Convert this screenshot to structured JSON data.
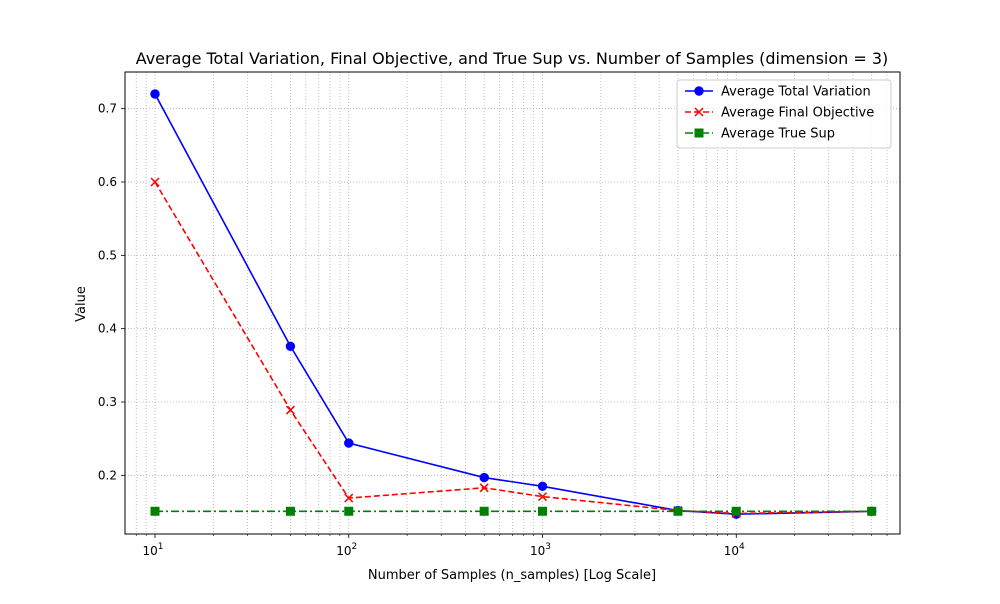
{
  "chart_data": {
    "type": "line",
    "title": "Average Total Variation, Final Objective, and True Sup vs. Number of Samples (dimension = 3)",
    "xlabel": "Number of Samples (n_samples) [Log Scale]",
    "ylabel": "Value",
    "x_scale": "log",
    "xlim": [
      7,
      70000
    ],
    "ylim": [
      0.12,
      0.75
    ],
    "x": [
      10,
      50,
      100,
      500,
      1000,
      5000,
      10000,
      50000
    ],
    "x_tick_values": [
      10,
      100,
      1000,
      10000
    ],
    "x_tick_labels": [
      {
        "base": "10",
        "exp": "1"
      },
      {
        "base": "10",
        "exp": "2"
      },
      {
        "base": "10",
        "exp": "3"
      },
      {
        "base": "10",
        "exp": "4"
      }
    ],
    "y_tick_values": [
      0.2,
      0.3,
      0.4,
      0.5,
      0.6,
      0.7
    ],
    "y_tick_labels": [
      "0.2",
      "0.3",
      "0.4",
      "0.5",
      "0.6",
      "0.7"
    ],
    "grid": "both",
    "legend_position": "top-right",
    "series": [
      {
        "name": "Average Total Variation",
        "values": [
          0.72,
          0.376,
          0.244,
          0.197,
          0.185,
          0.152,
          0.147,
          0.151
        ],
        "color": "#0000ff",
        "line_style": "solid",
        "marker": "circle"
      },
      {
        "name": "Average Final Objective",
        "values": [
          0.6,
          0.289,
          0.169,
          0.183,
          0.171,
          0.152,
          0.148,
          0.151
        ],
        "color": "#ff0000",
        "line_style": "dashed",
        "marker": "x"
      },
      {
        "name": "Average True Sup",
        "values": [
          0.151,
          0.151,
          0.151,
          0.151,
          0.151,
          0.151,
          0.151,
          0.151
        ],
        "color": "#008000",
        "line_style": "dashdot",
        "marker": "square"
      }
    ]
  }
}
